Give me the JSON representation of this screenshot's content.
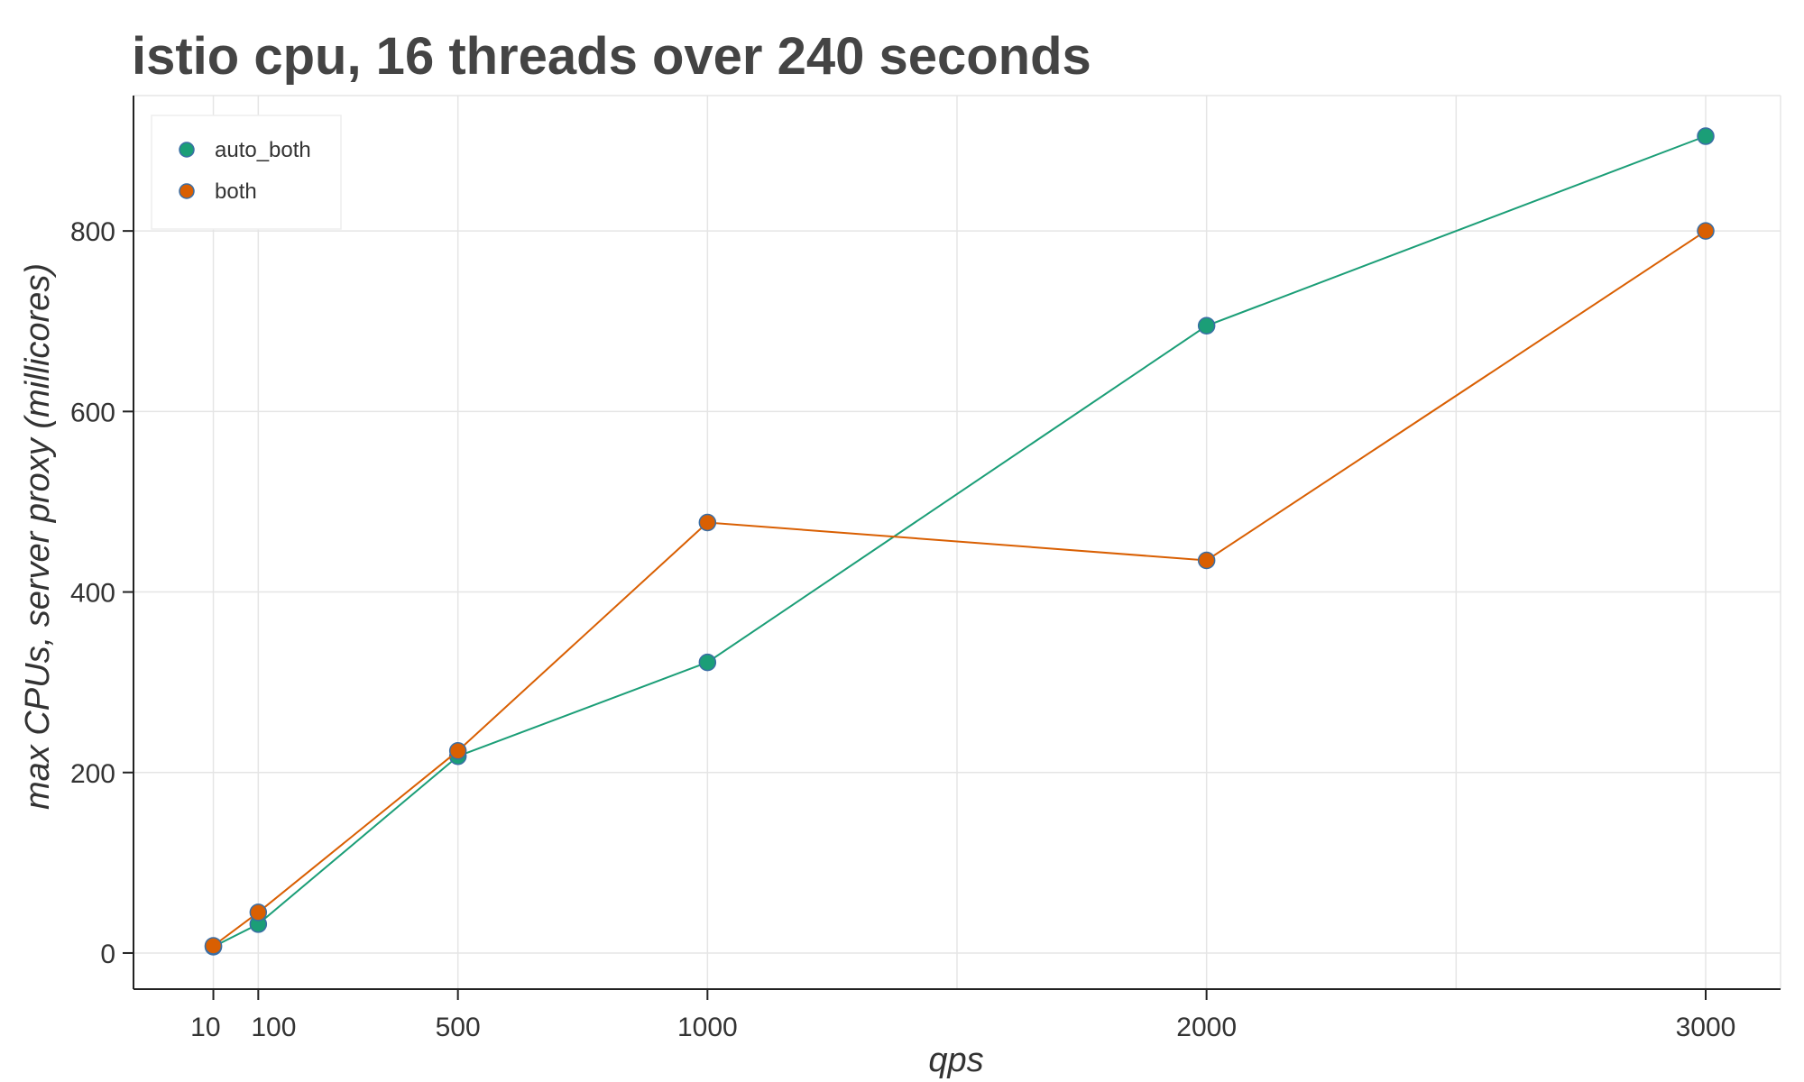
{
  "chart_data": {
    "type": "line",
    "title": "istio cpu, 16 threads over 240 seconds",
    "xlabel": "qps",
    "ylabel": "max CPUs, server proxy (millicores)",
    "xlim": [
      -150,
      3150
    ],
    "ylim": [
      -40,
      950
    ],
    "xticks": [
      10,
      100,
      500,
      1000,
      2000,
      3000
    ],
    "xtick_labels": [
      "10",
      "100",
      "500",
      "1000",
      "2000",
      "3000"
    ],
    "yticks": [
      0,
      200,
      400,
      600,
      800
    ],
    "ytick_labels": [
      "0",
      "200",
      "400",
      "600",
      "800"
    ],
    "x_gridlines": [
      10,
      100,
      500,
      1000,
      1500,
      2000,
      2500,
      3000
    ],
    "y_gridlines": [
      0,
      200,
      400,
      600,
      800
    ],
    "grid": true,
    "legend_position": "top-left",
    "series": [
      {
        "name": "auto_both",
        "color": "#1b9e77",
        "x": [
          10,
          100,
          500,
          1000,
          2000,
          3000
        ],
        "y": [
          7,
          32,
          218,
          322,
          695,
          905
        ]
      },
      {
        "name": "both",
        "color": "#d95f02",
        "x": [
          10,
          100,
          500,
          1000,
          2000,
          3000
        ],
        "y": [
          8,
          45,
          224,
          477,
          435,
          800
        ]
      }
    ]
  }
}
